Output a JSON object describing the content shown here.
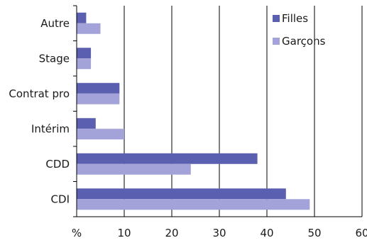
{
  "chart_data": {
    "type": "bar",
    "orientation": "horizontal",
    "categories": [
      "Autre",
      "Stage",
      "Contrat pro",
      "Intérim",
      "CDD",
      "CDI"
    ],
    "series": [
      {
        "name": "Filles",
        "values": [
          2,
          3,
          9,
          4,
          38,
          44
        ],
        "color": "#5b5fb0"
      },
      {
        "name": "Garçons",
        "values": [
          5,
          3,
          9,
          10,
          24,
          49
        ],
        "color": "#a3a3d9"
      }
    ],
    "x_ticks": [
      "%",
      "10",
      "20",
      "30",
      "40",
      "50",
      "60"
    ],
    "xlim": [
      0,
      60
    ],
    "grid": "vertical",
    "legend_position": "top-right"
  }
}
